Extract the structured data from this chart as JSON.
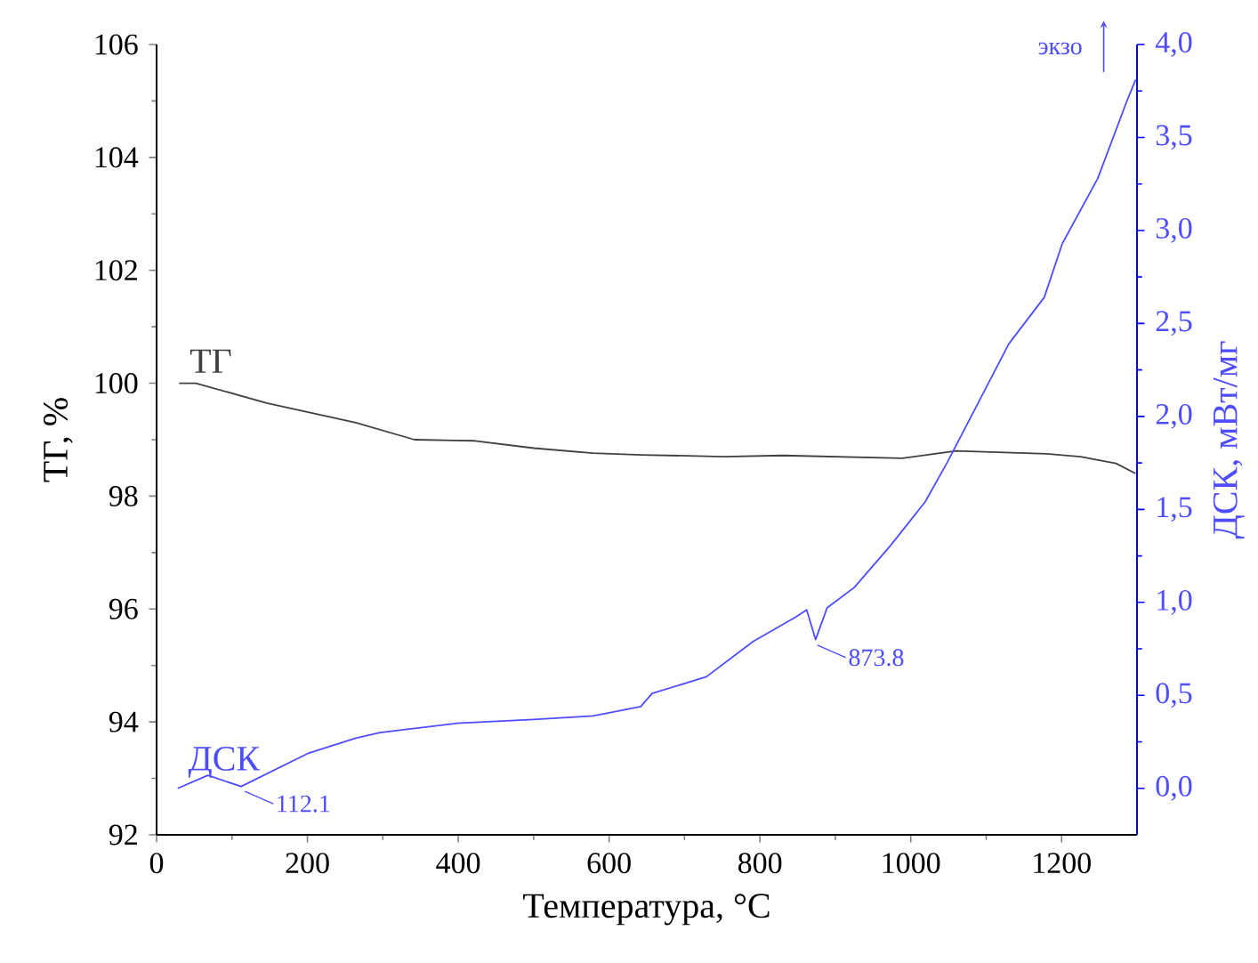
{
  "chart_data": {
    "type": "line",
    "xlabel": "Температура, °C",
    "ylabel": "ТГ, %",
    "y2label": "ДСК, мВт/мг",
    "xlim": [
      0,
      1300
    ],
    "xticks": [
      0,
      200,
      400,
      600,
      800,
      1000,
      1200
    ],
    "ylim": [
      92,
      106
    ],
    "yticks": [
      92,
      94,
      96,
      98,
      100,
      102,
      104,
      106
    ],
    "y2lim": [
      -0.25,
      4.0
    ],
    "y2ticks": [
      {
        "value": 0,
        "label": "0,0"
      },
      {
        "value": 0.5,
        "label": "0,5"
      },
      {
        "value": 1.0,
        "label": "1,0"
      },
      {
        "value": 1.5,
        "label": "1,5"
      },
      {
        "value": 2.0,
        "label": "2,0"
      },
      {
        "value": 2.5,
        "label": "2,5"
      },
      {
        "value": 3.0,
        "label": "3,0"
      },
      {
        "value": 3.5,
        "label": "3,5"
      },
      {
        "value": 4.0,
        "label": "4,0"
      }
    ],
    "series": [
      {
        "name": "ТГ",
        "color": "#404040",
        "x": [
          30,
          52,
          146,
          264,
          342,
          422,
          500,
          579,
          642,
          752,
          830,
          988,
          1060,
          1180,
          1225,
          1272,
          1298
        ],
        "values": [
          100.0,
          100.0,
          99.65,
          99.3,
          99.0,
          98.98,
          98.85,
          98.76,
          98.73,
          98.7,
          98.72,
          98.67,
          98.8,
          98.75,
          98.7,
          98.58,
          98.4
        ]
      },
      {
        "name": "ДСК",
        "color": "#4d4dff",
        "axis": "y2",
        "x": [
          28,
          68,
          112.1,
          202,
          264,
          296,
          398,
          500,
          579,
          642,
          657,
          729,
          791,
          847,
          862,
          873.8,
          889,
          925,
          972,
          1019,
          1048,
          1066,
          1130,
          1177,
          1201,
          1248,
          1286,
          1298
        ],
        "values": [
          0.0,
          0.07,
          0.01,
          0.19,
          0.27,
          0.3,
          0.35,
          0.37,
          0.39,
          0.44,
          0.51,
          0.6,
          0.79,
          0.92,
          0.96,
          0.8,
          0.97,
          1.08,
          1.3,
          1.54,
          1.75,
          1.89,
          2.39,
          2.64,
          2.93,
          3.28,
          3.69,
          3.81
        ]
      }
    ],
    "annotations": [
      "экзо",
      "112.1",
      "873.8"
    ]
  }
}
